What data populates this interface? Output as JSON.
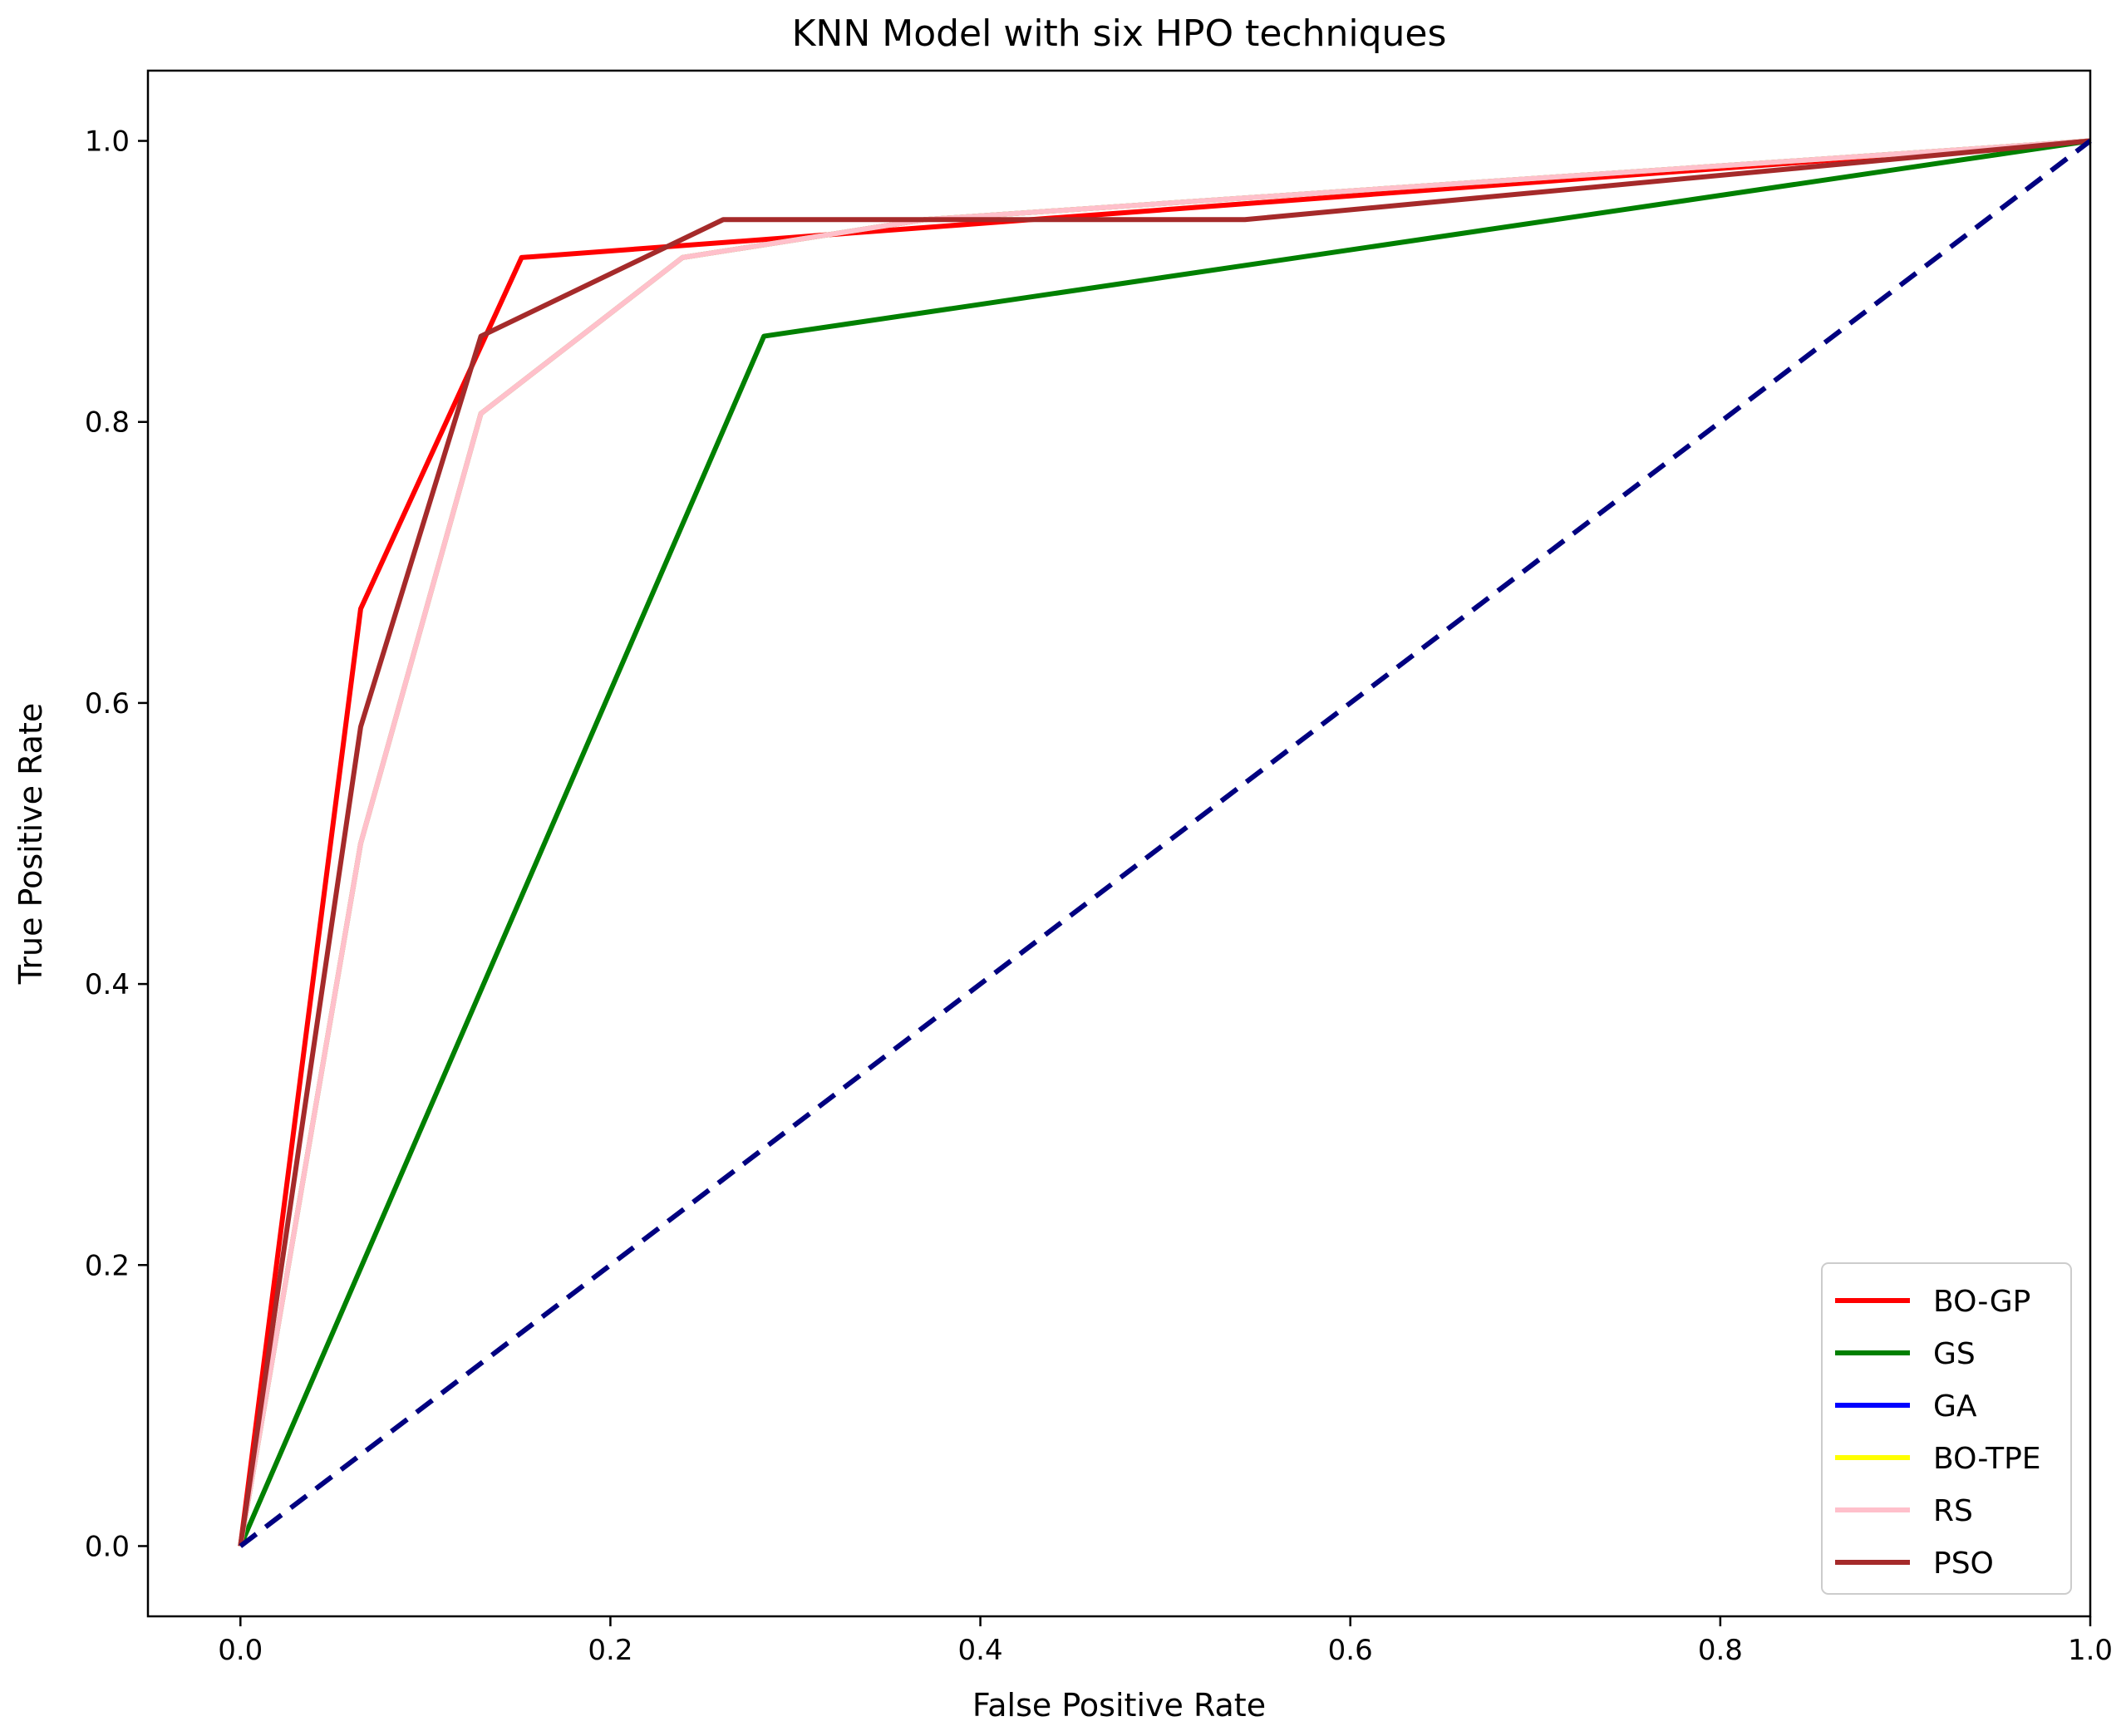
{
  "chart_data": {
    "type": "line",
    "title": "KNN Model with six HPO techniques",
    "xlabel": "False Positive Rate",
    "ylabel": "True Positive Rate",
    "xlim": [
      -0.05,
      1.0
    ],
    "ylim": [
      -0.05,
      1.05
    ],
    "xticks": [
      0.0,
      0.2,
      0.4,
      0.6,
      0.8,
      1.0
    ],
    "yticks": [
      0.0,
      0.2,
      0.4,
      0.6,
      0.8,
      1.0
    ],
    "xtick_labels": [
      "0.0",
      "0.2",
      "0.4",
      "0.6",
      "0.8",
      "1.0"
    ],
    "ytick_labels": [
      "0.0",
      "0.2",
      "0.4",
      "0.6",
      "0.8",
      "1.0"
    ],
    "grid": false,
    "legend_position": "lower-right",
    "series": [
      {
        "name": "BO-GP",
        "color": "#ff0000",
        "x": [
          0.0,
          0.065,
          0.152,
          1.0
        ],
        "y": [
          0.0,
          0.667,
          0.917,
          1.0
        ]
      },
      {
        "name": "GS",
        "color": "#008000",
        "x": [
          0.0,
          0.283,
          1.0
        ],
        "y": [
          0.0,
          0.861,
          1.0
        ]
      },
      {
        "name": "GA",
        "color": "#0000ff",
        "x": [
          0.0,
          0.065,
          0.13,
          0.239,
          0.37,
          1.0
        ],
        "y": [
          0.0,
          0.5,
          0.806,
          0.917,
          0.944,
          1.0
        ]
      },
      {
        "name": "BO-TPE",
        "color": "#ffff00",
        "x": [
          0.0,
          0.065,
          0.13,
          0.239,
          0.37,
          1.0
        ],
        "y": [
          0.0,
          0.5,
          0.806,
          0.917,
          0.944,
          1.0
        ]
      },
      {
        "name": "RS",
        "color": "#ffc0cb",
        "x": [
          0.0,
          0.065,
          0.13,
          0.239,
          0.37,
          1.0
        ],
        "y": [
          0.0,
          0.5,
          0.806,
          0.917,
          0.944,
          1.0
        ]
      },
      {
        "name": "PSO",
        "color": "#a52a2a",
        "x": [
          0.0,
          0.065,
          0.13,
          0.261,
          0.543,
          1.0
        ],
        "y": [
          0.0,
          0.583,
          0.861,
          0.944,
          0.944,
          1.0
        ]
      }
    ],
    "diagonal": {
      "color": "#000080",
      "x": [
        0.0,
        1.0
      ],
      "y": [
        0.0,
        1.0
      ],
      "style": "dashed"
    }
  }
}
